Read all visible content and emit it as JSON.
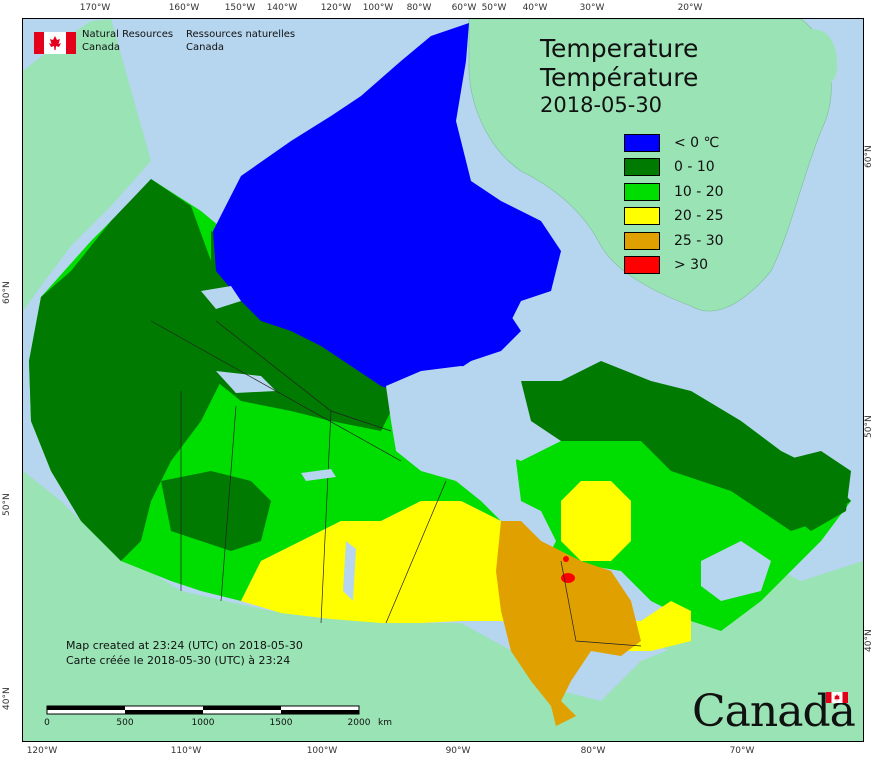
{
  "title": {
    "en": "Temperature",
    "fr": "Température",
    "date": "2018-05-30"
  },
  "agency": {
    "en_line1": "Natural Resources",
    "en_line2": "Canada",
    "fr_line1": "Ressources naturelles",
    "fr_line2": "Canada",
    "logo_icon": "canada-flag-icon"
  },
  "legend": [
    {
      "label": "< 0 ℃",
      "color": "#0000ff"
    },
    {
      "label": "0 - 10",
      "color": "#007a00"
    },
    {
      "label": "10 - 20",
      "color": "#00dd00"
    },
    {
      "label": "20 - 25",
      "color": "#ffff00"
    },
    {
      "label": "25 - 30",
      "color": "#e0a000"
    },
    {
      "label": "> 30",
      "color": "#ff0000"
    }
  ],
  "credit": {
    "en": "Map created at 23:24 (UTC) on 2018-05-30",
    "fr": "Carte créée le 2018-05-30 (UTC) à 23:24"
  },
  "scale": {
    "labels": [
      "0",
      "500",
      "1000",
      "1500",
      "2000"
    ],
    "unit": "km"
  },
  "wordmark": "Canada",
  "graticule": {
    "top": [
      "170°W",
      "160°W",
      "150°W",
      "140°W",
      "120°W",
      "100°W",
      "80°W",
      "60°W",
      "50°W",
      "40°W",
      "30°W",
      "20°W"
    ],
    "bottom": [
      "120°W",
      "110°W",
      "100°W",
      "90°W",
      "80°W",
      "70°W"
    ],
    "left": [
      "60°N",
      "50°N",
      "40°N"
    ],
    "right": [
      "60°N",
      "50°N",
      "40°N"
    ]
  },
  "colors": {
    "water": "#b6d5ee",
    "foreign_land": "#99e3b5",
    "flag_red": "#e3001b"
  }
}
